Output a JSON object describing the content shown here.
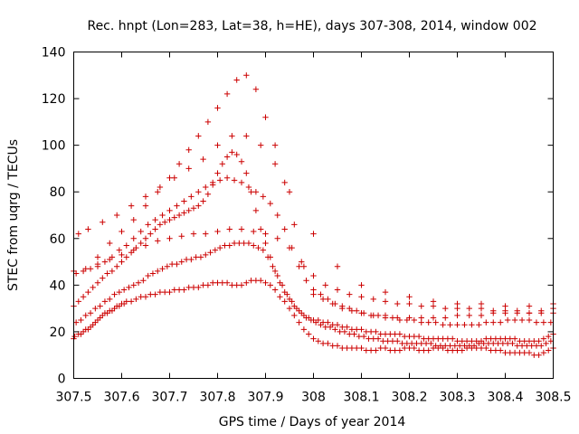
{
  "chart_data": {
    "type": "scatter",
    "title": "Rec. hnpt (Lon=283, Lat=38, h=HE), days 307-308, 2014, window 002",
    "xlabel": "GPS time / Days of year 2014",
    "ylabel": "STEC from uqrg / TECUs",
    "xlim": [
      307.5,
      308.5
    ],
    "ylim": [
      0,
      140
    ],
    "x_ticks": [
      307.5,
      307.6,
      307.7,
      307.8,
      307.9,
      308,
      308.1,
      308.2,
      308.3,
      308.4,
      308.5
    ],
    "x_tick_labels": [
      "307.5",
      "307.6",
      "307.7",
      "307.8",
      "307.9",
      "308",
      "308.1",
      "308.2",
      "308.3",
      "308.4",
      "308.5"
    ],
    "y_ticks": [
      0,
      20,
      40,
      60,
      80,
      100,
      120,
      140
    ],
    "y_tick_labels": [
      "0",
      "20",
      "40",
      "60",
      "80",
      "100",
      "120",
      "140"
    ],
    "grid": false,
    "legend": "none",
    "marker": "+",
    "color": "#cc0000",
    "series": [
      {
        "x": [
          307.5,
          307.502,
          307.51,
          307.515,
          307.52,
          307.525,
          307.53,
          307.535,
          307.54,
          307.545,
          307.55,
          307.555,
          307.56,
          307.565,
          307.57,
          307.575,
          307.58,
          307.585,
          307.59,
          307.595,
          307.6,
          307.605,
          307.61,
          307.62,
          307.63,
          307.64,
          307.65,
          307.66,
          307.67,
          307.68,
          307.69,
          307.7,
          307.71,
          307.72,
          307.73,
          307.74,
          307.75,
          307.76,
          307.77,
          307.78,
          307.79,
          307.8,
          307.81,
          307.82,
          307.83,
          307.84,
          307.85,
          307.86,
          307.87,
          307.88,
          307.89,
          307.9,
          307.91,
          307.92,
          307.93,
          307.94,
          307.95,
          307.96,
          307.97,
          307.98,
          307.99,
          308.0,
          308.01,
          308.02,
          308.03,
          308.04,
          308.05,
          308.06,
          308.07,
          308.08,
          308.09,
          308.1,
          308.11,
          308.12,
          308.13,
          308.14,
          308.15,
          308.16,
          308.17,
          308.18,
          308.19,
          308.2,
          308.21,
          308.22,
          308.23,
          308.24,
          308.25,
          308.26,
          308.27,
          308.28,
          308.29,
          308.3,
          308.31,
          308.32,
          308.33,
          308.34,
          308.35,
          308.36,
          308.37,
          308.38,
          308.39,
          308.4,
          308.41,
          308.42,
          308.43,
          308.44,
          308.45,
          308.46,
          308.47,
          308.48,
          308.49,
          308.5
        ],
        "y": [
          17,
          18,
          19,
          19,
          20,
          21,
          21,
          22,
          23,
          24,
          25,
          26,
          27,
          28,
          28,
          29,
          29,
          30,
          31,
          31,
          32,
          32,
          33,
          33,
          34,
          35,
          35,
          36,
          36,
          37,
          37,
          37,
          38,
          38,
          38,
          39,
          39,
          39,
          40,
          40,
          41,
          41,
          41,
          41,
          40,
          40,
          40,
          41,
          42,
          42,
          42,
          41,
          40,
          38,
          35,
          33,
          30,
          27,
          24,
          21,
          19,
          17,
          16,
          15,
          15,
          14,
          14,
          13,
          13,
          13,
          13,
          13,
          12,
          12,
          12,
          13,
          13,
          12,
          12,
          12,
          13,
          13,
          13,
          12,
          12,
          12,
          13,
          13,
          13,
          12,
          12,
          12,
          12,
          13,
          13,
          13,
          13,
          13,
          12,
          12,
          12,
          11,
          11,
          11,
          11,
          11,
          11,
          10,
          10,
          11,
          12,
          13
        ]
      },
      {
        "x": [
          307.505,
          307.515,
          307.525,
          307.535,
          307.545,
          307.555,
          307.565,
          307.575,
          307.585,
          307.595,
          307.605,
          307.615,
          307.625,
          307.635,
          307.645,
          307.655,
          307.665,
          307.675,
          307.685,
          307.695,
          307.705,
          307.715,
          307.725,
          307.735,
          307.745,
          307.755,
          307.765,
          307.775,
          307.785,
          307.795,
          307.805,
          307.815,
          307.825,
          307.835,
          307.845,
          307.855,
          307.865,
          307.875,
          307.885,
          307.895,
          307.905,
          307.915,
          307.925,
          307.935,
          307.945,
          307.955,
          307.965,
          307.975,
          307.985,
          307.995,
          308.005,
          308.015,
          308.025,
          308.035,
          308.045,
          308.055,
          308.065,
          308.075,
          308.085,
          308.095,
          308.105,
          308.115,
          308.125,
          308.135,
          308.145,
          308.155,
          308.165,
          308.175,
          308.185,
          308.195,
          308.205,
          308.215,
          308.225,
          308.235,
          308.245,
          308.255,
          308.265,
          308.275,
          308.285,
          308.295,
          308.305,
          308.315,
          308.325,
          308.335,
          308.345,
          308.355,
          308.365,
          308.375,
          308.385,
          308.395,
          308.405,
          308.415,
          308.425,
          308.435,
          308.445,
          308.455,
          308.465,
          308.475,
          308.485,
          308.495
        ],
        "y": [
          24,
          25,
          27,
          28,
          30,
          31,
          33,
          34,
          36,
          37,
          38,
          39,
          40,
          41,
          42,
          44,
          45,
          46,
          47,
          48,
          49,
          49,
          50,
          51,
          51,
          52,
          52,
          53,
          54,
          55,
          56,
          57,
          57,
          58,
          58,
          58,
          58,
          57,
          56,
          55,
          52,
          48,
          44,
          40,
          36,
          33,
          30,
          28,
          26,
          25,
          24,
          23,
          22,
          22,
          21,
          20,
          20,
          19,
          19,
          18,
          18,
          17,
          17,
          17,
          16,
          16,
          16,
          16,
          15,
          15,
          15,
          15,
          15,
          15,
          15,
          14,
          14,
          14,
          14,
          14,
          14,
          14,
          14,
          14,
          15,
          15,
          15,
          15,
          15,
          15,
          15,
          15,
          14,
          14,
          14,
          14,
          14,
          14,
          15,
          16
        ]
      },
      {
        "x": [
          307.5,
          307.51,
          307.52,
          307.53,
          307.54,
          307.55,
          307.56,
          307.57,
          307.58,
          307.59,
          307.6,
          307.61,
          307.62,
          307.63,
          307.64,
          307.65,
          307.66,
          307.67,
          307.68,
          307.69,
          307.7,
          307.71,
          307.72,
          307.73,
          307.74,
          307.75,
          307.76,
          307.77,
          307.78,
          307.79,
          307.8,
          307.81,
          307.82,
          307.83,
          307.84,
          307.85,
          307.86,
          307.87,
          307.88,
          307.89,
          307.9,
          307.91,
          307.92,
          307.93,
          307.94,
          307.95,
          307.96,
          307.97,
          307.98,
          307.99,
          308.0,
          308.01,
          308.02,
          308.03,
          308.04,
          308.05,
          308.06,
          308.07,
          308.08,
          308.09,
          308.1,
          308.11,
          308.12,
          308.13,
          308.14,
          308.15,
          308.16,
          308.17,
          308.18,
          308.19,
          308.2,
          308.21,
          308.22,
          308.23,
          308.24,
          308.25,
          308.26,
          308.27,
          308.28,
          308.29,
          308.3,
          308.31,
          308.32,
          308.33,
          308.34,
          308.35,
          308.36,
          308.37,
          308.38,
          308.39,
          308.4,
          308.41,
          308.42,
          308.43,
          308.44,
          308.45,
          308.46,
          308.47,
          308.48,
          308.49,
          308.5
        ],
        "y": [
          31,
          33,
          35,
          37,
          39,
          41,
          43,
          45,
          46,
          48,
          50,
          52,
          54,
          56,
          58,
          60,
          62,
          64,
          66,
          67,
          68,
          69,
          70,
          71,
          72,
          73,
          74,
          76,
          79,
          83,
          88,
          92,
          95,
          97,
          96,
          93,
          88,
          80,
          72,
          64,
          58,
          52,
          46,
          41,
          37,
          34,
          31,
          29,
          27,
          26,
          25,
          25,
          24,
          24,
          23,
          23,
          22,
          22,
          21,
          21,
          21,
          20,
          20,
          20,
          19,
          19,
          19,
          19,
          19,
          18,
          18,
          18,
          18,
          17,
          17,
          17,
          17,
          17,
          17,
          17,
          16,
          16,
          16,
          16,
          16,
          16,
          17,
          17,
          17,
          17,
          17,
          17,
          17,
          16,
          16,
          16,
          16,
          16,
          17,
          18,
          19
        ]
      },
      {
        "x": [
          307.505,
          307.52,
          307.535,
          307.55,
          307.565,
          307.58,
          307.595,
          307.61,
          307.625,
          307.64,
          307.655,
          307.67,
          307.685,
          307.7,
          307.715,
          307.73,
          307.745,
          307.76,
          307.775,
          307.79,
          307.805,
          307.82,
          307.835,
          307.85,
          307.865,
          307.88,
          307.895,
          307.91,
          307.925,
          307.94,
          307.955,
          307.97,
          307.985,
          308.0,
          308.015,
          308.03,
          308.045,
          308.06,
          308.075,
          308.09,
          308.105,
          308.12,
          308.135,
          308.15,
          308.165,
          308.18,
          308.195,
          308.21,
          308.225,
          308.24,
          308.255,
          308.27,
          308.285,
          308.3,
          308.315,
          308.33,
          308.345,
          308.36,
          308.375,
          308.39,
          308.405,
          308.42,
          308.435,
          308.45,
          308.465,
          308.48,
          308.495
        ],
        "y": [
          45,
          46,
          47,
          48,
          50,
          52,
          55,
          57,
          60,
          63,
          66,
          68,
          70,
          72,
          74,
          76,
          78,
          80,
          82,
          84,
          85,
          86,
          85,
          84,
          82,
          80,
          78,
          75,
          70,
          64,
          56,
          48,
          42,
          38,
          36,
          34,
          32,
          31,
          30,
          29,
          28,
          27,
          27,
          26,
          26,
          25,
          25,
          25,
          24,
          24,
          24,
          23,
          23,
          23,
          23,
          23,
          23,
          24,
          24,
          24,
          25,
          25,
          25,
          25,
          24,
          24,
          24
        ]
      },
      {
        "x": [
          307.55,
          307.575,
          307.6,
          307.625,
          307.65,
          307.675,
          307.7,
          307.72,
          307.74,
          307.76,
          307.78,
          307.8,
          307.82,
          307.84,
          307.86,
          307.88,
          307.9,
          307.92,
          307.94,
          307.96,
          307.98,
          308.0,
          308.02,
          308.04,
          308.06,
          308.08,
          308.1,
          308.125,
          308.15,
          308.175,
          308.2,
          308.225,
          308.25,
          308.275,
          308.3,
          308.325,
          308.35,
          308.375,
          308.4,
          308.425,
          308.45,
          308.475,
          308.5
        ],
        "y": [
          52,
          58,
          63,
          68,
          74,
          80,
          86,
          92,
          98,
          104,
          110,
          116,
          122,
          128,
          130,
          124,
          112,
          100,
          84,
          66,
          48,
          36,
          34,
          32,
          30,
          29,
          28,
          27,
          27,
          26,
          26,
          26,
          26,
          26,
          27,
          27,
          27,
          28,
          28,
          28,
          28,
          29,
          30
        ]
      },
      {
        "x": [
          307.5,
          307.525,
          307.55,
          307.575,
          307.6,
          307.625,
          307.65,
          307.675,
          307.7,
          307.725,
          307.75,
          307.775,
          307.8,
          307.825,
          307.85,
          307.875,
          307.9,
          307.925,
          307.95,
          307.975,
          308.0,
          308.025,
          308.05,
          308.075,
          308.1,
          308.125,
          308.15,
          308.175,
          308.2,
          308.225,
          308.25,
          308.275,
          308.3,
          308.325,
          308.35,
          308.375,
          308.4,
          308.425,
          308.45,
          308.475,
          308.5
        ],
        "y": [
          46,
          47,
          49,
          51,
          53,
          55,
          57,
          59,
          60,
          61,
          62,
          62,
          63,
          64,
          64,
          63,
          62,
          60,
          56,
          50,
          44,
          40,
          38,
          36,
          35,
          34,
          33,
          32,
          32,
          31,
          31,
          30,
          30,
          30,
          30,
          29,
          29,
          29,
          28,
          28,
          28
        ]
      },
      {
        "x": [
          307.51,
          307.53,
          307.56,
          307.59,
          307.62,
          307.65,
          307.68,
          307.71,
          307.74,
          307.77,
          307.8,
          307.83,
          307.86,
          307.89,
          307.92,
          307.95,
          308.0,
          308.05,
          308.1,
          308.15,
          308.2,
          308.25,
          308.3,
          308.35,
          308.4,
          308.45,
          308.5
        ],
        "y": [
          62,
          64,
          67,
          70,
          74,
          78,
          82,
          86,
          90,
          94,
          100,
          104,
          104,
          100,
          92,
          80,
          62,
          48,
          40,
          37,
          35,
          33,
          32,
          32,
          31,
          31,
          32
        ]
      }
    ]
  }
}
